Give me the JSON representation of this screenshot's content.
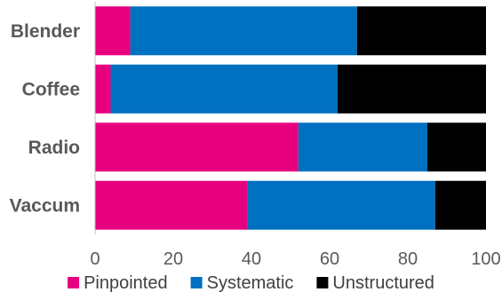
{
  "chart_data": {
    "type": "bar",
    "orientation": "horizontal",
    "stacked": true,
    "title": "",
    "xlabel": "",
    "ylabel": "",
    "categories": [
      "Blender",
      "Coffee",
      "Radio",
      "Vaccum"
    ],
    "series": [
      {
        "name": "Pinpointed",
        "color": "#e6007e",
        "values": [
          9,
          4,
          52,
          39
        ]
      },
      {
        "name": "Systematic",
        "color": "#0070c0",
        "values": [
          58,
          58,
          33,
          48
        ]
      },
      {
        "name": "Unstructured",
        "color": "#000000",
        "values": [
          33,
          38,
          15,
          13
        ]
      }
    ],
    "xlim": [
      0,
      100
    ],
    "xticks": [
      0,
      20,
      40,
      60,
      80,
      100
    ],
    "grid": false,
    "legend": "bottom"
  }
}
